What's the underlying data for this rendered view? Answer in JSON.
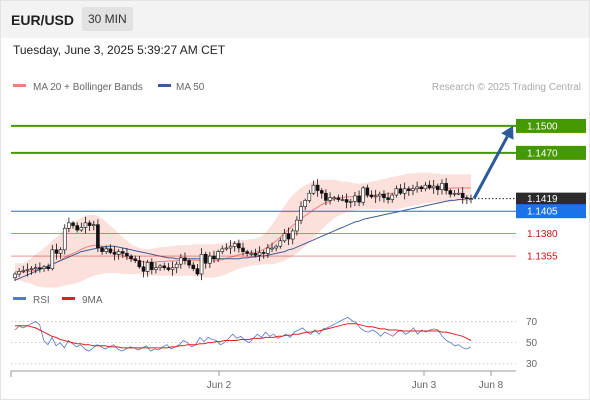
{
  "header": {
    "symbol": "EUR/USD",
    "timeframe": "30 MIN",
    "datetime": "Tuesday, June 3, 2025 5:39:27 AM CET",
    "credit": "Research © 2025 Trading Central"
  },
  "colors": {
    "support": "#cc1111",
    "resistance": "#449900",
    "pivot": "#3366cc",
    "ma50": "#3d5d96",
    "bb": "#f08080",
    "rsi": "#5577cc",
    "rsi_ma": "#dd2222",
    "arrow": "#2a5a9a"
  },
  "chart_data": [
    {
      "type": "candlestick",
      "legend": [
        {
          "name": "MA 20 + Bollinger Bands",
          "color": "#f08080"
        },
        {
          "name": "MA 50",
          "color": "#3d5d96"
        }
      ],
      "ylim": [
        1.1325,
        1.153
      ],
      "levels": [
        {
          "value": 1.15,
          "label": "1.1500",
          "kind": "resistance"
        },
        {
          "value": 1.147,
          "label": "1.1470",
          "kind": "resistance"
        },
        {
          "value": 1.1419,
          "label": "1.1419",
          "kind": "last"
        },
        {
          "value": 1.1405,
          "label": "1.1405",
          "kind": "pivot"
        },
        {
          "value": 1.138,
          "label": "1.1380",
          "kind": "support"
        },
        {
          "value": 1.1355,
          "label": "1.1355",
          "kind": "support"
        }
      ],
      "x_ticks": [
        "Jun 2",
        "Jun 3",
        "Jun 8"
      ],
      "closes": [
        1.1335,
        1.1338,
        1.1339,
        1.134,
        1.1341,
        1.1342,
        1.1341,
        1.1343,
        1.1341,
        1.1362,
        1.1358,
        1.1362,
        1.1386,
        1.1392,
        1.1389,
        1.1384,
        1.1387,
        1.1392,
        1.1389,
        1.139,
        1.1364,
        1.136,
        1.1363,
        1.1359,
        1.1357,
        1.136,
        1.1358,
        1.1355,
        1.1352,
        1.135,
        1.1343,
        1.1338,
        1.1348,
        1.134,
        1.1342,
        1.1344,
        1.1342,
        1.134,
        1.1342,
        1.1346,
        1.1353,
        1.135,
        1.1345,
        1.1341,
        1.1335,
        1.1357,
        1.1347,
        1.1355,
        1.1352,
        1.136,
        1.1363,
        1.1364,
        1.1366,
        1.1369,
        1.1364,
        1.136,
        1.1358,
        1.1358,
        1.1356,
        1.1359,
        1.1358,
        1.1364,
        1.1364,
        1.1366,
        1.1372,
        1.138,
        1.1374,
        1.1383,
        1.1395,
        1.141,
        1.1417,
        1.1425,
        1.1434,
        1.1428,
        1.1425,
        1.1417,
        1.142,
        1.142,
        1.1418,
        1.1418,
        1.1415,
        1.1416,
        1.1422,
        1.1415,
        1.1431,
        1.1423,
        1.1421,
        1.1422,
        1.1424,
        1.142,
        1.1418,
        1.1423,
        1.143,
        1.1425,
        1.143,
        1.1428,
        1.143,
        1.1432,
        1.143,
        1.1434,
        1.1431,
        1.1433,
        1.1429,
        1.1436,
        1.1428,
        1.1424,
        1.1425,
        1.1425,
        1.142,
        1.1419,
        1.1419
      ],
      "ma20_upper": [
        1.1347,
        1.1347,
        1.1347,
        1.135,
        1.1353,
        1.1357,
        1.136,
        1.1364,
        1.1368,
        1.1372,
        1.1376,
        1.138,
        1.1385,
        1.1389,
        1.1392,
        1.1395,
        1.1398,
        1.14,
        1.1401,
        1.1401,
        1.14,
        1.1397,
        1.1393,
        1.1389,
        1.1385,
        1.138,
        1.1376,
        1.1372,
        1.1368,
        1.1366,
        1.1364,
        1.1363,
        1.1363,
        1.1363,
        1.1364,
        1.1365,
        1.1365,
        1.1366,
        1.1366,
        1.1367,
        1.1367,
        1.1367,
        1.1367,
        1.1368,
        1.1368,
        1.1368,
        1.1368,
        1.1368,
        1.1368,
        1.1369,
        1.1369,
        1.137,
        1.1371,
        1.1371,
        1.1372,
        1.1373,
        1.1373,
        1.1374,
        1.1374,
        1.1376,
        1.1379,
        1.1384,
        1.139,
        1.1397,
        1.1404,
        1.1411,
        1.1417,
        1.1423,
        1.1427,
        1.1431,
        1.1434,
        1.1436,
        1.1438,
        1.1439,
        1.144,
        1.144,
        1.144,
        1.144,
        1.1439,
        1.1438,
        1.1438,
        1.1437,
        1.1436,
        1.1436,
        1.1436,
        1.1437,
        1.1438,
        1.1439,
        1.144,
        1.1441,
        1.1442,
        1.1443,
        1.1444,
        1.1445,
        1.1446,
        1.1447,
        1.1447,
        1.1448,
        1.1448,
        1.1448,
        1.1448,
        1.1447,
        1.1447,
        1.1446,
        1.1446,
        1.1446,
        1.1446,
        1.1446,
        1.1446,
        1.1446,
        1.1446
      ],
      "ma20_lower": [
        1.1328,
        1.1328,
        1.1327,
        1.1325,
        1.1324,
        1.1322,
        1.1321,
        1.132,
        1.132,
        1.132,
        1.132,
        1.1321,
        1.1322,
        1.1323,
        1.1324,
        1.1325,
        1.1327,
        1.1329,
        1.1331,
        1.1333,
        1.1334,
        1.1335,
        1.1336,
        1.1336,
        1.1336,
        1.1336,
        1.1335,
        1.1335,
        1.1335,
        1.1335,
        1.1335,
        1.1334,
        1.1334,
        1.1333,
        1.1333,
        1.1333,
        1.1333,
        1.1333,
        1.1333,
        1.1333,
        1.1333,
        1.1333,
        1.1333,
        1.1333,
        1.1332,
        1.1332,
        1.1331,
        1.1331,
        1.1331,
        1.1332,
        1.1333,
        1.1335,
        1.1337,
        1.1339,
        1.1341,
        1.1342,
        1.1343,
        1.1344,
        1.1345,
        1.1345,
        1.1346,
        1.1346,
        1.1346,
        1.1347,
        1.1348,
        1.135,
        1.1352,
        1.1355,
        1.1358,
        1.1362,
        1.1366,
        1.137,
        1.1375,
        1.138,
        1.1385,
        1.1389,
        1.1393,
        1.1397,
        1.14,
        1.1402,
        1.1404,
        1.1405,
        1.1406,
        1.1407,
        1.1407,
        1.1407,
        1.1407,
        1.1407,
        1.1407,
        1.1407,
        1.1407,
        1.1407,
        1.1407,
        1.1408,
        1.1409,
        1.141,
        1.1411,
        1.1412,
        1.1413,
        1.1414,
        1.1414,
        1.1415,
        1.1415,
        1.1415,
        1.1415,
        1.1415,
        1.1416,
        1.1416,
        1.1416,
        1.1416,
        1.1416
      ],
      "ma50": [
        1.1328,
        1.133,
        1.1332,
        1.1334,
        1.1336,
        1.1338,
        1.134,
        1.1342,
        1.1344,
        1.1346,
        1.1348,
        1.135,
        1.1352,
        1.1354,
        1.1356,
        1.1358,
        1.136,
        1.1361,
        1.1362,
        1.1363,
        1.1364,
        1.1365,
        1.1366,
        1.1366,
        1.1366,
        1.1365,
        1.1364,
        1.1363,
        1.1362,
        1.1361,
        1.136,
        1.1359,
        1.1358,
        1.1357,
        1.1356,
        1.1355,
        1.1354,
        1.1353,
        1.1353,
        1.1352,
        1.1352,
        1.1352,
        1.1352,
        1.1352,
        1.1352,
        1.1352,
        1.1352,
        1.1352,
        1.1352,
        1.1352,
        1.1352,
        1.1352,
        1.1352,
        1.1352,
        1.1352,
        1.1353,
        1.1353,
        1.1354,
        1.1354,
        1.1355,
        1.1355,
        1.1356,
        1.1357,
        1.1358,
        1.1359,
        1.136,
        1.1362,
        1.1363,
        1.1365,
        1.1367,
        1.1369,
        1.1371,
        1.1373,
        1.1375,
        1.1377,
        1.1379,
        1.1381,
        1.1383,
        1.1385,
        1.1387,
        1.1389,
        1.1391,
        1.1393,
        1.1394,
        1.1396,
        1.1397,
        1.1398,
        1.1399,
        1.14,
        1.1401,
        1.1402,
        1.1403,
        1.1404,
        1.1405,
        1.1406,
        1.1407,
        1.1408,
        1.1409,
        1.141,
        1.1411,
        1.1412,
        1.1413,
        1.1414,
        1.1415,
        1.1416,
        1.1417,
        1.1417,
        1.1418,
        1.1418,
        1.1419,
        1.1419
      ],
      "target_arrow": {
        "from": 1.1419,
        "to": 1.15
      }
    },
    {
      "type": "line",
      "legend": [
        {
          "name": "RSI",
          "color": "#5577cc"
        },
        {
          "name": "9MA",
          "color": "#dd2222"
        }
      ],
      "y_ticks": [
        70,
        50,
        30
      ],
      "ylim": [
        25,
        80
      ],
      "rsi": [
        62,
        66,
        64,
        66,
        68,
        70,
        67,
        52,
        48,
        55,
        47,
        50,
        45,
        52,
        49,
        46,
        48,
        44,
        42,
        45,
        48,
        46,
        44,
        46,
        48,
        44,
        42,
        44,
        46,
        45,
        43,
        45,
        47,
        42,
        44,
        43,
        46,
        48,
        44,
        46,
        48,
        52,
        50,
        46,
        48,
        55,
        51,
        55,
        53,
        52,
        48,
        50,
        54,
        58,
        54,
        56,
        52,
        50,
        54,
        58,
        55,
        60,
        56,
        58,
        54,
        56,
        58,
        55,
        60,
        62,
        64,
        60,
        58,
        62,
        58,
        63,
        64,
        66,
        68,
        70,
        72,
        74,
        71,
        69,
        64,
        61,
        60,
        62,
        60,
        56,
        60,
        58,
        56,
        60,
        62,
        58,
        60,
        64,
        58,
        62,
        60,
        62,
        63,
        62,
        56,
        52,
        50,
        47,
        48,
        45,
        44,
        46
      ],
      "rsi_ma": [
        66,
        66,
        66,
        66,
        65,
        64,
        62,
        60,
        58,
        56,
        55,
        53,
        52,
        51,
        50,
        49,
        49,
        48,
        48,
        47,
        47,
        47,
        47,
        46,
        46,
        46,
        45,
        45,
        45,
        45,
        45,
        45,
        45,
        45,
        45,
        45,
        45,
        45,
        46,
        46,
        47,
        47,
        48,
        48,
        48,
        49,
        49,
        50,
        50,
        51,
        51,
        52,
        52,
        52,
        52,
        53,
        53,
        53,
        54,
        54,
        54,
        55,
        55,
        55,
        56,
        56,
        57,
        57,
        58,
        58,
        59,
        60,
        60,
        61,
        61,
        62,
        63,
        64,
        65,
        66,
        67,
        68,
        68,
        68,
        67,
        66,
        65,
        65,
        64,
        63,
        63,
        62,
        62,
        62,
        61,
        61,
        61,
        61,
        61,
        61,
        61,
        61,
        61,
        61,
        60,
        60,
        59,
        58,
        57,
        56,
        54,
        52
      ]
    }
  ]
}
